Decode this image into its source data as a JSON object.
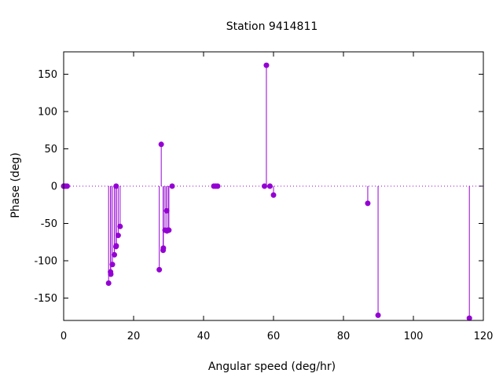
{
  "chart_data": {
    "type": "scatter",
    "style": "impulses-with-points",
    "title": "Station 9414811",
    "xlabel": "Angular speed (deg/hr)",
    "ylabel": "Phase (deg)",
    "xlim": [
      0,
      120
    ],
    "ylim": [
      -180,
      180
    ],
    "xticks": [
      0,
      20,
      40,
      60,
      80,
      100,
      120
    ],
    "yticks": [
      -150,
      -100,
      -50,
      0,
      50,
      100,
      150
    ],
    "zero_line": true,
    "grid": false,
    "color": "#9400d3",
    "series": [
      {
        "points": [
          {
            "x": 0.0,
            "y": 0
          },
          {
            "x": 0.04,
            "y": 0
          },
          {
            "x": 0.08,
            "y": 0
          },
          {
            "x": 0.5,
            "y": 0
          },
          {
            "x": 1.0,
            "y": 0
          },
          {
            "x": 12.85,
            "y": -130
          },
          {
            "x": 13.4,
            "y": -115
          },
          {
            "x": 13.47,
            "y": -118
          },
          {
            "x": 13.94,
            "y": -105
          },
          {
            "x": 14.5,
            "y": -92
          },
          {
            "x": 14.96,
            "y": -81
          },
          {
            "x": 15.0,
            "y": 0
          },
          {
            "x": 15.04,
            "y": -80
          },
          {
            "x": 15.59,
            "y": -66
          },
          {
            "x": 16.14,
            "y": -54
          },
          {
            "x": 27.34,
            "y": -112
          },
          {
            "x": 27.9,
            "y": 56
          },
          {
            "x": 28.44,
            "y": -86
          },
          {
            "x": 28.51,
            "y": -83
          },
          {
            "x": 28.99,
            "y": -59
          },
          {
            "x": 29.46,
            "y": -33
          },
          {
            "x": 29.53,
            "y": -60
          },
          {
            "x": 30.0,
            "y": -59
          },
          {
            "x": 30.08,
            "y": -59
          },
          {
            "x": 31.02,
            "y": 0
          },
          {
            "x": 42.93,
            "y": 0
          },
          {
            "x": 43.48,
            "y": 0
          },
          {
            "x": 44.03,
            "y": 0
          },
          {
            "x": 57.42,
            "y": 0
          },
          {
            "x": 57.97,
            "y": 162
          },
          {
            "x": 58.98,
            "y": 0
          },
          {
            "x": 60.0,
            "y": -12
          },
          {
            "x": 86.95,
            "y": -23
          },
          {
            "x": 89.9,
            "y": -173
          },
          {
            "x": 116.0,
            "y": -177
          }
        ]
      }
    ]
  }
}
